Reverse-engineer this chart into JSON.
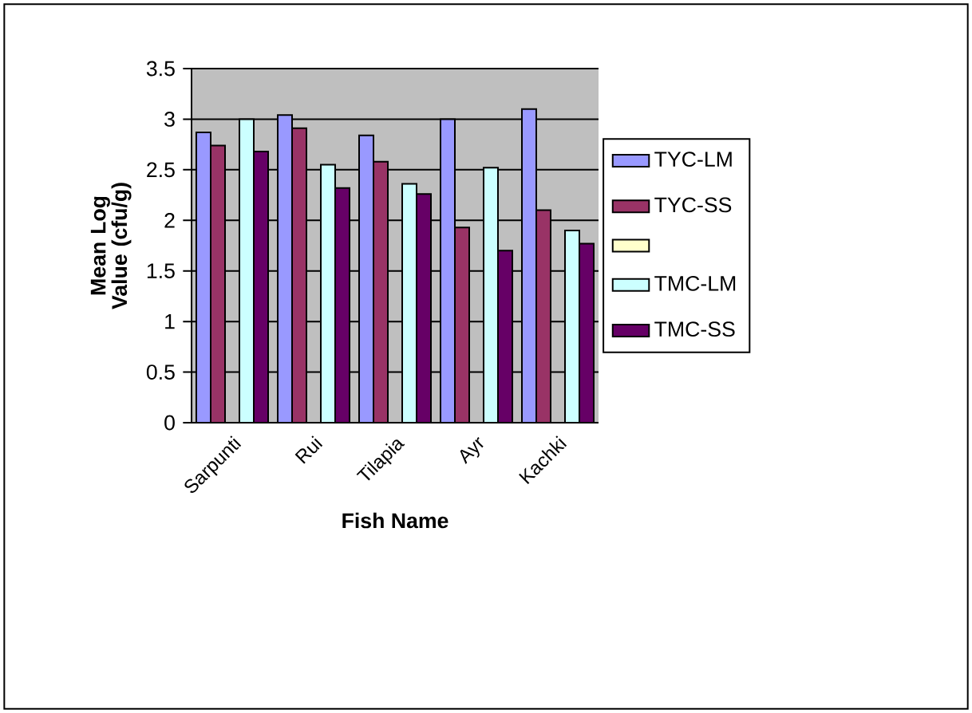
{
  "chart_data": {
    "type": "bar",
    "xlabel": "Fish Name",
    "ylabel": "Mean Log Value (cfu/g)",
    "categories": [
      "Sarpunti",
      "Rui",
      "Tilapia",
      "Ayr",
      "Kachki"
    ],
    "series": [
      {
        "name": "TYC-LM",
        "color": "#9999ff",
        "values": [
          2.87,
          3.04,
          2.84,
          3.0,
          3.1
        ]
      },
      {
        "name": "TYC-SS",
        "color": "#993366",
        "values": [
          2.74,
          2.91,
          2.58,
          1.93,
          2.1
        ]
      },
      {
        "color": "#ffffcc",
        "values": [
          null,
          null,
          null,
          null,
          null
        ]
      },
      {
        "name": "TMC-LM",
        "color": "#ccffff",
        "values": [
          3.0,
          2.55,
          2.36,
          2.52,
          1.9
        ]
      },
      {
        "name": "TMC-SS",
        "color": "#660066",
        "values": [
          2.68,
          2.32,
          2.26,
          1.7,
          1.77
        ]
      }
    ],
    "ylim": [
      0,
      3.5
    ],
    "yticks": [
      0,
      0.5,
      1,
      1.5,
      2,
      2.5,
      3,
      3.5
    ],
    "grid": "y",
    "legend": "right"
  }
}
